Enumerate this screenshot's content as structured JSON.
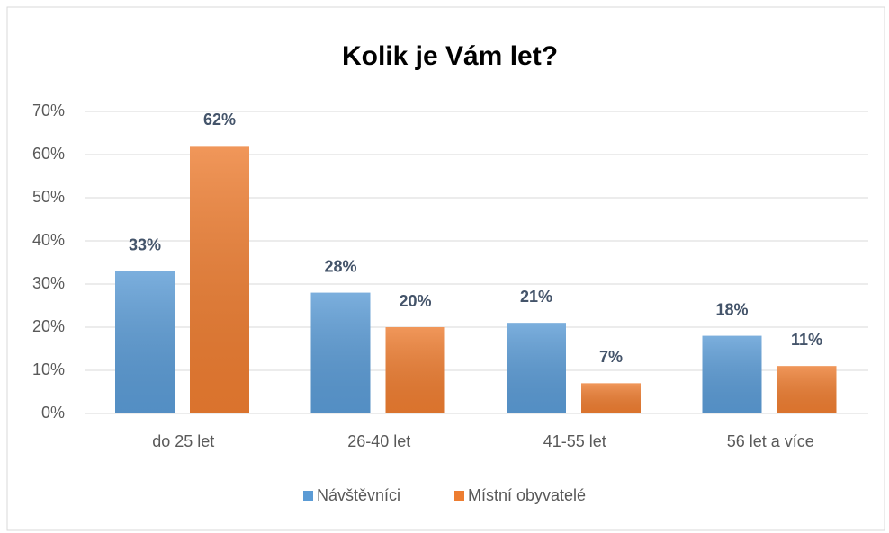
{
  "chart_data": {
    "type": "bar",
    "title": "Kolik je Vám let?",
    "categories": [
      "do 25 let",
      "26-40 let",
      "41-55 let",
      "56 let a více"
    ],
    "series": [
      {
        "name": "Návštěvníci",
        "color": "#5b9bd5",
        "values": [
          33,
          28,
          21,
          18
        ],
        "value_labels": [
          "33%",
          "28%",
          "21%",
          "18%"
        ]
      },
      {
        "name": "Místní obyvatelé",
        "color": "#ed7d31",
        "values": [
          62,
          20,
          7,
          11
        ],
        "value_labels": [
          "62%",
          "20%",
          "7%",
          "11%"
        ]
      }
    ],
    "ylim": [
      0,
      70
    ],
    "yticks": [
      {
        "value": 0,
        "label": "0%"
      },
      {
        "value": 10,
        "label": "10%"
      },
      {
        "value": 20,
        "label": "20%"
      },
      {
        "value": 30,
        "label": "30%"
      },
      {
        "value": 40,
        "label": "40%"
      },
      {
        "value": 50,
        "label": "50%"
      },
      {
        "value": 60,
        "label": "60%"
      },
      {
        "value": 70,
        "label": "70%"
      }
    ],
    "grid": true,
    "legend": "bottom"
  }
}
